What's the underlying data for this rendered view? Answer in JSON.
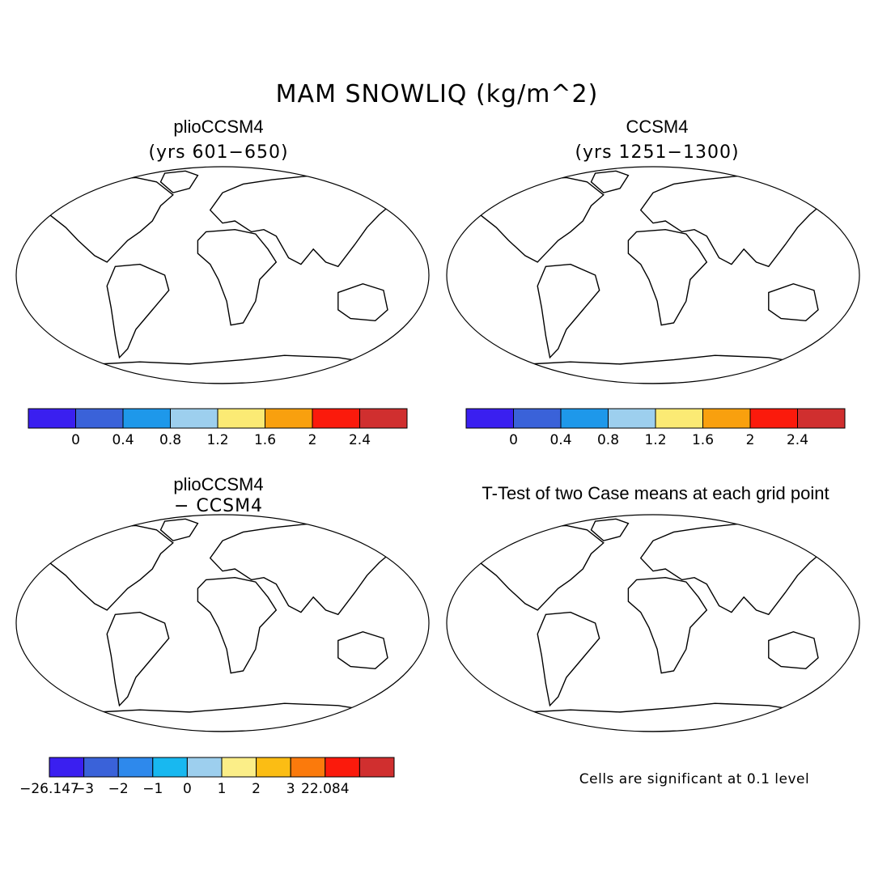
{
  "figure": {
    "title": "MAM SNOWLIQ (kg/m^2)",
    "note": "Cells are significant at 0.1 level"
  },
  "panels": [
    {
      "id": "plio",
      "title": "plioCCSM4",
      "subtitle": "(yrs 601−650)",
      "kind": "abs"
    },
    {
      "id": "ccsm",
      "title": "CCSM4",
      "subtitle": "(yrs 1251−1300)",
      "kind": "abs"
    },
    {
      "id": "diff",
      "title": "plioCCSM4",
      "subtitle": "− CCSM4",
      "kind": "diff"
    },
    {
      "id": "ttest",
      "title": "T-Test of two Case means at each grid point",
      "subtitle": "",
      "kind": "sig"
    }
  ],
  "colorbars": {
    "absolute": {
      "colors": [
        "#3a1ff0",
        "#3a62d9",
        "#1e98ea",
        "#9dcfee",
        "#fbea74",
        "#f9a00e",
        "#fb1a0c",
        "#d02f2f"
      ],
      "labels": [
        "0",
        "0.4",
        "0.8",
        "1.2",
        "1.6",
        "2",
        "2.4"
      ]
    },
    "difference": {
      "colors": [
        "#3a1ff0",
        "#3a62d9",
        "#2e89ec",
        "#18b8f0",
        "#9dcfee",
        "#fbee88",
        "#fbbd14",
        "#fb7a0c",
        "#fb1a0c",
        "#d02f2f"
      ],
      "labels": [
        "−26.147",
        "−3",
        "−2",
        "−1",
        "0",
        "1",
        "2",
        "3",
        "22.084"
      ]
    }
  },
  "colors": {
    "land_snow": "#3a62d9",
    "significant": "#fb0d0d",
    "outline": "#000000"
  }
}
